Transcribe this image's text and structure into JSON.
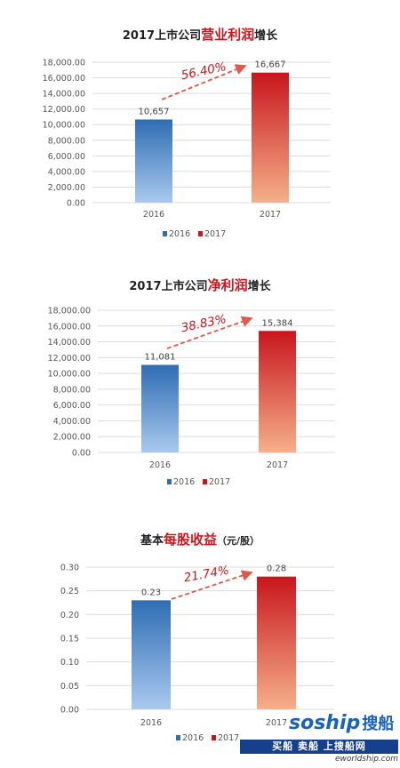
{
  "chart_data": [
    {
      "type": "bar",
      "title_prefix": "2017上市公司",
      "title_highlight": "营业利润",
      "title_suffix": "增长",
      "categories": [
        "2016",
        "2017"
      ],
      "values": [
        10657,
        16667
      ],
      "value_labels": [
        "10,657",
        "16,667"
      ],
      "ylim": [
        0,
        18000
      ],
      "yticks": [
        "0.00",
        "2,000.00",
        "4,000.00",
        "6,000.00",
        "8,000.00",
        "10,000.00",
        "12,000.00",
        "14,000.00",
        "16,000.00",
        "18,000.00"
      ],
      "growth_label": "56.40%",
      "legend": [
        "2016",
        "2017"
      ],
      "legend_position": "bottom",
      "colors": [
        "#2f6db3",
        "#c8161d"
      ],
      "grid": true
    },
    {
      "type": "bar",
      "title_prefix": "2017上市公司",
      "title_highlight": "净利润",
      "title_suffix": "增长",
      "categories": [
        "2016",
        "2017"
      ],
      "values": [
        11081,
        15384
      ],
      "value_labels": [
        "11,081",
        "15,384"
      ],
      "ylim": [
        0,
        18000
      ],
      "yticks": [
        "0.00",
        "2,000.00",
        "4,000.00",
        "6,000.00",
        "8,000.00",
        "10,000.00",
        "12,000.00",
        "14,000.00",
        "16,000.00",
        "18,000.00"
      ],
      "growth_label": "38.83%",
      "legend": [
        "2016",
        "2017"
      ],
      "legend_position": "bottom",
      "colors": [
        "#2f6db3",
        "#c8161d"
      ],
      "grid": true
    },
    {
      "type": "bar",
      "title_prefix": "基本",
      "title_highlight": "每股收益",
      "title_suffix": "（元/股）",
      "categories": [
        "2016",
        "2017"
      ],
      "values": [
        0.23,
        0.28
      ],
      "value_labels": [
        "0.23",
        "0.28"
      ],
      "ylim": [
        0,
        0.3
      ],
      "yticks": [
        "0.00",
        "0.05",
        "0.10",
        "0.15",
        "0.20",
        "0.25",
        "0.30"
      ],
      "growth_label": "21.74%",
      "legend": [
        "2016",
        "2017"
      ],
      "legend_position": "bottom",
      "colors": [
        "#2f6db3",
        "#c8161d"
      ],
      "grid": true
    }
  ],
  "watermark": {
    "logo": "soship",
    "logo_cn": "搜船",
    "bar_text": "买船 卖船 上搜船网",
    "url": "eworldship.com"
  }
}
